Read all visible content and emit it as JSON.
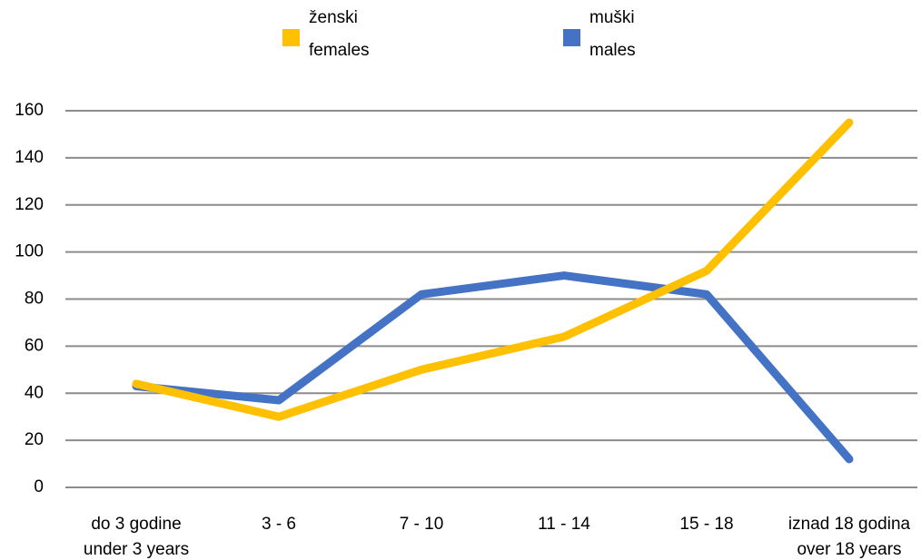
{
  "chart_data": {
    "type": "line",
    "categories": [
      [
        "do 3 godine",
        "under 3 years"
      ],
      [
        "3 - 6"
      ],
      [
        "7 - 10"
      ],
      [
        "11 - 14"
      ],
      [
        "15 - 18"
      ],
      [
        "iznad 18 godina",
        "over 18 years"
      ]
    ],
    "series": [
      {
        "name": [
          "muški",
          "males"
        ],
        "color": "#4472c4",
        "values": [
          43,
          37,
          82,
          90,
          82,
          12
        ]
      },
      {
        "name": [
          "ženski",
          "females"
        ],
        "color": "#ffc000",
        "values": [
          44,
          30,
          50,
          64,
          92,
          155
        ]
      }
    ],
    "ylim": [
      0,
      160
    ],
    "yticks": [
      0,
      20,
      40,
      60,
      80,
      100,
      120,
      140,
      160
    ],
    "grid": true,
    "legend": "top"
  }
}
